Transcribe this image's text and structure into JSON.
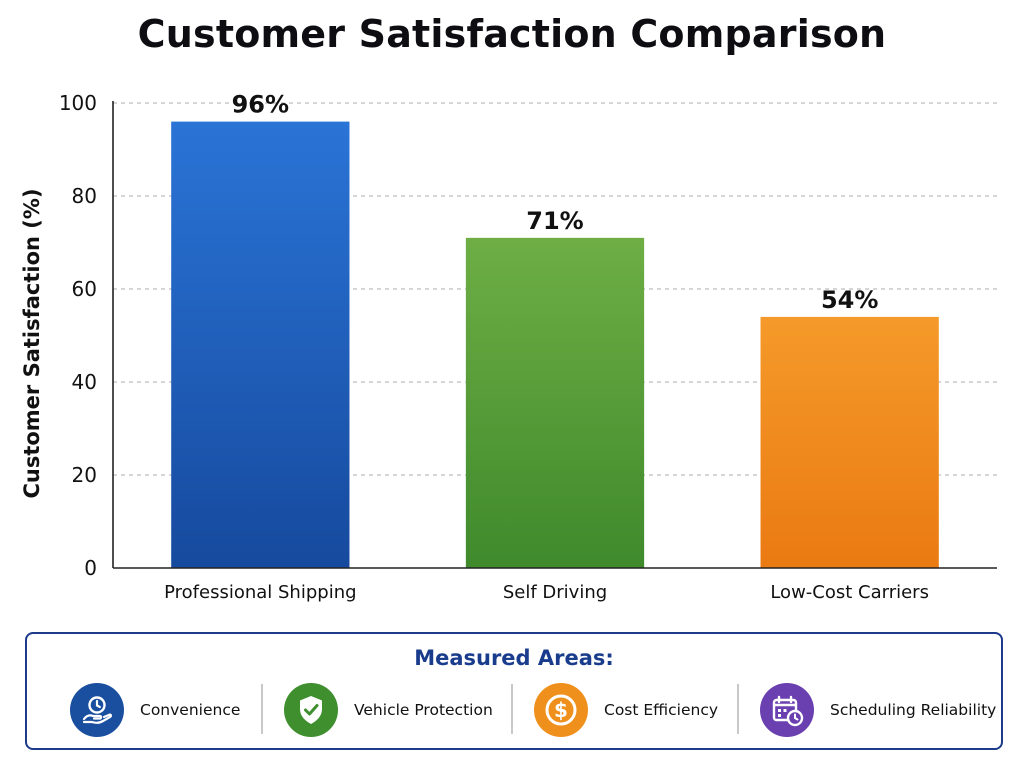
{
  "chart_data": {
    "type": "bar",
    "title": "Customer Satisfaction Comparison",
    "xlabel": "",
    "ylabel": "Customer Satisfaction (%)",
    "categories": [
      "Professional Shipping",
      "Self Driving",
      "Low-Cost Carriers"
    ],
    "values": [
      96,
      71,
      54
    ],
    "value_labels": [
      "96%",
      "71%",
      "54%"
    ],
    "bar_colors": [
      "#1f5fc8",
      "#5aa23c",
      "#f28a1e"
    ],
    "ylim": [
      0,
      100
    ],
    "yticks": [
      0,
      20,
      40,
      60,
      80,
      100
    ],
    "grid": true,
    "grid_style": "dashed horizontal"
  },
  "legend": {
    "heading": "Measured Areas:",
    "items": [
      {
        "label": "Convenience",
        "icon": "clock-hand-icon",
        "color": "#1a4fa0"
      },
      {
        "label": "Vehicle Protection",
        "icon": "shield-check-icon",
        "color": "#3f8f2f"
      },
      {
        "label": "Cost Efficiency",
        "icon": "dollar-coin-icon",
        "color": "#f0901c"
      },
      {
        "label": "Scheduling Reliability",
        "icon": "calendar-clock-icon",
        "color": "#6a3fb0"
      }
    ]
  }
}
